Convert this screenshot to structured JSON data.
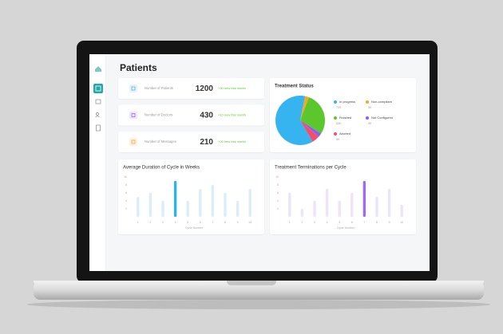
{
  "screen": {
    "title": "Patients"
  },
  "stats": [
    {
      "label": "Number of Patients",
      "value": 1200,
      "change": "+30 new this month"
    },
    {
      "label": "Number of Doctors",
      "value": 430,
      "change": "+10 new this month"
    },
    {
      "label": "Number of Messages",
      "value": 210,
      "change": "+20 new this month"
    }
  ],
  "chart_data": [
    {
      "type": "pie",
      "title": "Treatment Status",
      "categories": [
        "In progress",
        "Non-compliant",
        "Finished",
        "Not Configured",
        "Aborted"
      ],
      "values": [
        720,
        30,
        330,
        30,
        60
      ],
      "colors": [
        "#35b4f0",
        "#f5a623",
        "#5cc72c",
        "#8b5cf6",
        "#f0506e"
      ]
    },
    {
      "type": "bar",
      "title": "Average Duration of Cycle in Weeks",
      "xlabel": "Cycle Number",
      "categories": [
        "1",
        "2",
        "3",
        "4",
        "5",
        "6",
        "7",
        "8",
        "9",
        "10"
      ],
      "values": [
        5,
        6,
        4,
        9,
        4,
        7,
        8,
        6,
        4,
        7
      ],
      "colors": [
        "#dcedf9",
        "#dcedf9",
        "#dcedf9",
        "#2bb5ee",
        "#dcedf9",
        "#dcedf9",
        "#dcedf9",
        "#dcedf9",
        "#dcedf9",
        "#dcedf9"
      ],
      "ylim": [
        0,
        10
      ],
      "yticks": [
        2,
        4,
        6,
        8,
        10
      ],
      "grid": false
    },
    {
      "type": "bar",
      "title": "Treatment Terminations per Cycle",
      "xlabel": "Cycle Number",
      "categories": [
        "1",
        "2",
        "3",
        "4",
        "5",
        "6",
        "7",
        "8",
        "9",
        "10"
      ],
      "values": [
        6,
        2,
        4,
        7,
        4,
        6,
        9,
        5,
        7,
        3
      ],
      "colors": [
        "#ece4fa",
        "#ece4fa",
        "#ece4fa",
        "#ece4fa",
        "#ece4fa",
        "#ece4fa",
        "#9b6cf0",
        "#ece4fa",
        "#ece4fa",
        "#ece4fa"
      ],
      "ylim": [
        0,
        10
      ],
      "yticks": [
        2,
        4,
        6,
        8,
        10
      ],
      "grid": false
    }
  ]
}
